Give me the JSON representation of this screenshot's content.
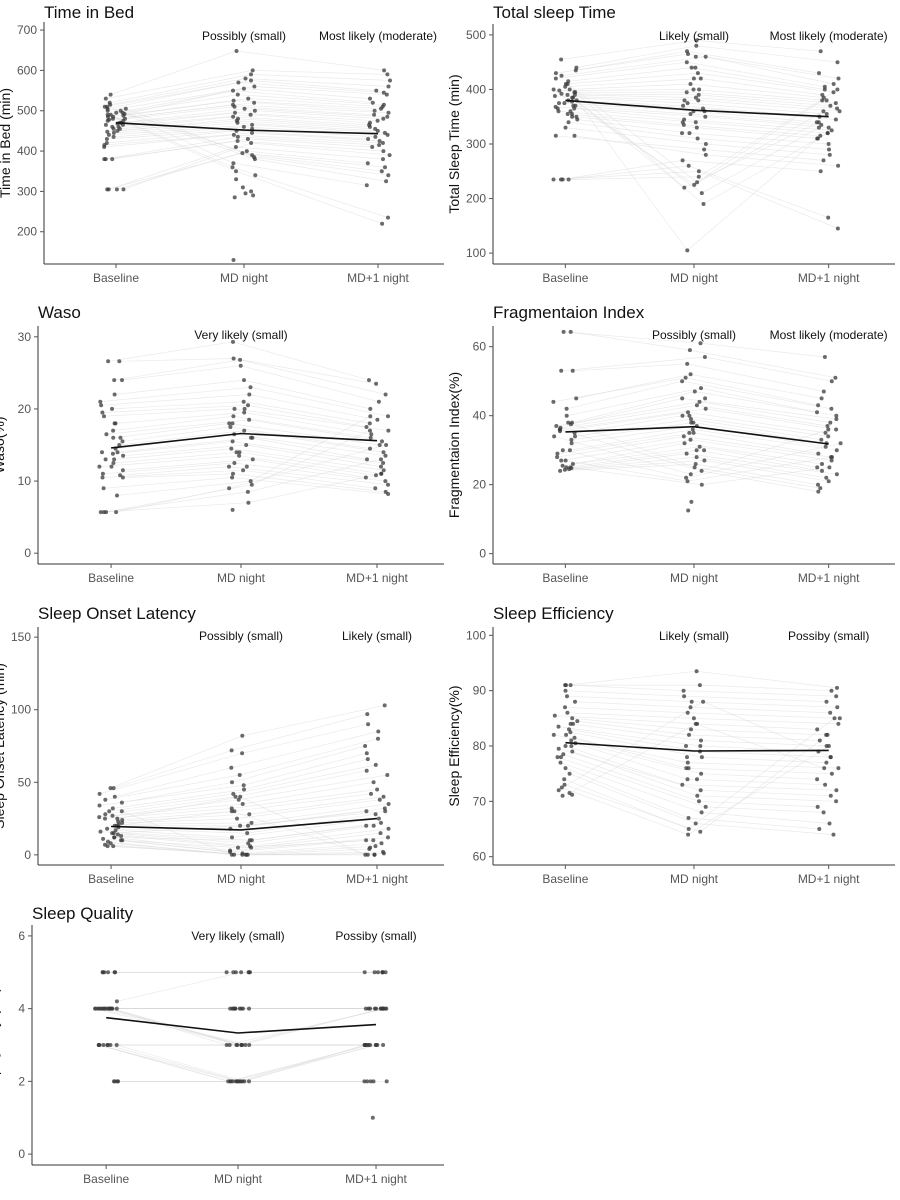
{
  "chart_data": [
    {
      "type": "scatter",
      "title": "Time in Bed",
      "ylabel": "Time in Bed (min)",
      "categories": [
        "Baseline",
        "MD night",
        "MD+1 night"
      ],
      "ylim": [
        120,
        720
      ],
      "yticks": [
        200,
        300,
        400,
        500,
        600,
        700
      ],
      "mean": [
        470,
        452,
        443
      ],
      "annotations": [
        "",
        "Possibly (small)",
        "Most likely (moderate)"
      ],
      "series": [
        {
          "name": "Baseline",
          "values": [
            540,
            530,
            520,
            515,
            510,
            505,
            500,
            495,
            492,
            490,
            488,
            485,
            480,
            478,
            475,
            470,
            468,
            465,
            460,
            455,
            450,
            448,
            445,
            440,
            435,
            430,
            420,
            415,
            410,
            380,
            380,
            380,
            305,
            305,
            305,
            305,
            500,
            505,
            510,
            495,
            490,
            485,
            480,
            475,
            470,
            465,
            460,
            455
          ]
        },
        {
          "name": "MD night",
          "values": [
            648,
            600,
            590,
            580,
            575,
            570,
            560,
            555,
            550,
            540,
            530,
            525,
            520,
            515,
            510,
            505,
            500,
            495,
            490,
            485,
            480,
            475,
            470,
            465,
            460,
            455,
            450,
            445,
            440,
            435,
            430,
            425,
            420,
            410,
            400,
            395,
            390,
            385,
            380,
            370,
            360,
            350,
            340,
            330,
            310,
            300,
            295,
            290,
            285,
            130
          ]
        },
        {
          "name": "MD+1 night",
          "values": [
            600,
            590,
            575,
            560,
            550,
            545,
            540,
            530,
            520,
            515,
            510,
            505,
            500,
            495,
            490,
            485,
            480,
            475,
            470,
            465,
            460,
            455,
            450,
            445,
            440,
            435,
            430,
            425,
            420,
            415,
            410,
            400,
            390,
            380,
            370,
            360,
            350,
            340,
            325,
            315,
            235,
            220
          ]
        }
      ]
    },
    {
      "type": "scatter",
      "title": "Total sleep Time",
      "ylabel": "Total Sleep Time (min)",
      "categories": [
        "Baseline",
        "MD night",
        "MD+1 night"
      ],
      "ylim": [
        80,
        520
      ],
      "yticks": [
        100,
        200,
        300,
        400,
        500
      ],
      "mean": [
        380,
        362,
        350
      ],
      "annotations": [
        "",
        "Likely (small)",
        "Most likely (moderate)"
      ],
      "series": [
        {
          "name": "Baseline",
          "values": [
            455,
            440,
            435,
            430,
            425,
            420,
            415,
            410,
            405,
            400,
            398,
            395,
            392,
            390,
            388,
            385,
            380,
            378,
            375,
            370,
            368,
            365,
            360,
            355,
            350,
            345,
            340,
            330,
            315,
            315,
            235,
            235,
            235,
            235,
            410,
            400,
            395,
            390,
            385,
            380,
            375,
            370,
            365,
            360,
            355,
            350
          ]
        },
        {
          "name": "MD night",
          "values": [
            490,
            480,
            470,
            465,
            460,
            450,
            440,
            430,
            420,
            410,
            400,
            395,
            390,
            385,
            380,
            375,
            370,
            365,
            360,
            355,
            350,
            345,
            340,
            335,
            330,
            320,
            310,
            300,
            290,
            280,
            270,
            260,
            250,
            240,
            230,
            225,
            220,
            210,
            190,
            105,
            460,
            440,
            420,
            400,
            380,
            360,
            340,
            320
          ]
        },
        {
          "name": "MD+1 night",
          "values": [
            470,
            450,
            430,
            420,
            410,
            405,
            400,
            395,
            390,
            385,
            380,
            375,
            370,
            365,
            360,
            355,
            350,
            345,
            340,
            335,
            330,
            325,
            320,
            315,
            310,
            300,
            290,
            280,
            270,
            260,
            250,
            165,
            145,
            400,
            380,
            360,
            340,
            330,
            320,
            310
          ]
        }
      ]
    },
    {
      "type": "scatter",
      "title": "Waso",
      "ylabel": "Waso(%)",
      "categories": [
        "Baseline",
        "MD night",
        "MD+1 night"
      ],
      "ylim": [
        -1.5,
        31.5
      ],
      "yticks": [
        0,
        10,
        20,
        30
      ],
      "mean": [
        14.6,
        16.6,
        15.6
      ],
      "annotations": [
        "",
        "Very likely (small)",
        ""
      ],
      "series": [
        {
          "name": "Baseline",
          "values": [
            26.6,
            26.6,
            24,
            24,
            22,
            21,
            20.5,
            20,
            19.5,
            19,
            18,
            17,
            16.5,
            16,
            15.5,
            15,
            14.5,
            14,
            13.8,
            13.5,
            13,
            12.5,
            12,
            11.5,
            11,
            10.8,
            10.5,
            10.5,
            9,
            8,
            5.7,
            5.7,
            5.7,
            5.7,
            18,
            16,
            14,
            13,
            12
          ]
        },
        {
          "name": "MD night",
          "values": [
            29.3,
            27,
            26.8,
            26,
            24,
            23,
            22,
            21,
            20.5,
            20,
            19.5,
            19,
            18.5,
            18,
            17.5,
            17,
            16.5,
            16,
            15.5,
            15,
            14.5,
            14,
            13.5,
            13,
            12.5,
            12,
            11.5,
            11,
            10.5,
            10,
            9.5,
            9,
            8.5,
            7,
            6,
            20,
            18,
            16,
            14,
            12
          ]
        },
        {
          "name": "MD+1 night",
          "values": [
            24,
            23.5,
            22,
            21,
            20,
            19,
            18.5,
            18,
            17.5,
            17,
            16.5,
            16,
            15.5,
            15,
            14.5,
            14,
            13.5,
            13,
            12.5,
            12,
            11.5,
            11,
            10.8,
            10.5,
            10,
            9.5,
            9,
            8.5,
            8.2,
            19,
            17,
            15,
            13,
            11
          ]
        }
      ]
    },
    {
      "type": "scatter",
      "title": "Fragmentaion Index",
      "ylabel": "Fragmentaion Index(%)",
      "categories": [
        "Baseline",
        "MD night",
        "MD+1 night"
      ],
      "ylim": [
        -3,
        66
      ],
      "yticks": [
        0,
        20,
        40,
        60
      ],
      "mean": [
        35.3,
        36.8,
        31.8
      ],
      "annotations": [
        "",
        "Possibly (small)",
        "Most likely (moderate)"
      ],
      "series": [
        {
          "name": "Baseline",
          "values": [
            64.3,
            64.3,
            53,
            53,
            45,
            44,
            42,
            40,
            38,
            37.5,
            37,
            36.5,
            36,
            35.5,
            35,
            34,
            33,
            32,
            30,
            29,
            28,
            27,
            26,
            25.5,
            25,
            24.8,
            24.5,
            24.3,
            24,
            38,
            36,
            34,
            30,
            27,
            25
          ]
        },
        {
          "name": "MD night",
          "values": [
            61,
            59,
            57,
            55,
            52,
            51,
            50,
            48,
            47,
            45,
            44,
            43,
            42,
            41,
            40,
            39,
            38,
            37,
            36,
            35,
            34,
            33,
            32,
            31,
            30,
            29,
            28,
            27,
            26,
            25,
            24,
            23,
            22,
            21,
            20,
            15,
            12.5,
            45,
            40,
            38,
            35,
            30
          ]
        },
        {
          "name": "MD+1 night",
          "values": [
            57,
            51,
            50,
            47,
            45,
            43,
            42,
            41,
            40,
            39,
            38,
            37,
            36,
            35,
            34,
            33,
            32,
            31,
            30,
            29,
            28,
            27,
            26,
            25,
            24,
            23,
            22,
            21,
            20,
            19,
            18,
            36,
            32,
            28,
            25
          ]
        }
      ]
    },
    {
      "type": "scatter",
      "title": "Sleep Onset Latency",
      "ylabel": "Sleep Onset Latency (min)",
      "categories": [
        "Baseline",
        "MD night",
        "MD+1 night"
      ],
      "ylim": [
        -7,
        157
      ],
      "yticks": [
        0,
        50,
        100,
        150
      ],
      "mean": [
        19.5,
        17.2,
        25
      ],
      "annotations": [
        "",
        "Possibly (small)",
        "Likely (small)"
      ],
      "series": [
        {
          "name": "Baseline",
          "values": [
            46,
            46,
            42,
            40,
            38,
            36,
            34,
            32,
            30,
            28,
            27,
            26,
            25,
            24,
            23,
            22,
            21,
            20,
            19,
            18,
            17,
            16,
            15,
            14,
            13,
            12,
            11,
            10,
            9,
            8,
            7,
            6,
            6,
            30,
            25,
            20,
            15,
            12,
            10
          ]
        },
        {
          "name": "MD night",
          "values": [
            82,
            72,
            70,
            60,
            55,
            50,
            48,
            45,
            42,
            40,
            38,
            35,
            32,
            30,
            28,
            25,
            22,
            20,
            18,
            15,
            12,
            10,
            8,
            6,
            5,
            3,
            2,
            1,
            0,
            0,
            0,
            0,
            0,
            0,
            40,
            30,
            20,
            10,
            5
          ]
        },
        {
          "name": "MD+1 night",
          "values": [
            103,
            97,
            90,
            85,
            80,
            75,
            70,
            66,
            62,
            58,
            55,
            50,
            45,
            42,
            40,
            38,
            35,
            32,
            30,
            28,
            25,
            22,
            20,
            18,
            15,
            12,
            10,
            8,
            6,
            4,
            2,
            1,
            0,
            0,
            0,
            0,
            30,
            20,
            10,
            5
          ]
        }
      ]
    },
    {
      "type": "scatter",
      "title": "Sleep Efficiency",
      "ylabel": "Sleep Efficiency(%)",
      "categories": [
        "Baseline",
        "MD night",
        "MD+1 night"
      ],
      "ylim": [
        58.5,
        101.5
      ],
      "yticks": [
        60,
        70,
        80,
        90,
        100
      ],
      "mean": [
        80.6,
        79.1,
        79.2
      ],
      "annotations": [
        "",
        "Likely (small)",
        "Possiby (small)"
      ],
      "series": [
        {
          "name": "Baseline",
          "values": [
            91,
            91,
            91,
            90,
            89,
            88,
            87,
            86,
            85.5,
            85,
            84.5,
            84,
            83.5,
            83,
            82.5,
            82,
            81.5,
            81,
            80.5,
            80,
            79.5,
            79,
            78.5,
            78,
            77,
            76,
            75,
            74,
            73,
            72.5,
            72,
            71.5,
            71.2,
            71,
            84,
            82,
            80,
            78
          ]
        },
        {
          "name": "MD night",
          "values": [
            93.5,
            91,
            90,
            89,
            88,
            87,
            86,
            85,
            84,
            83,
            82,
            81,
            80,
            79,
            78,
            77,
            76,
            75,
            74,
            73,
            72,
            71,
            70,
            69,
            68,
            67,
            66,
            65,
            64.5,
            64,
            88,
            84,
            80,
            78,
            76,
            74
          ]
        },
        {
          "name": "MD+1 night",
          "values": [
            90.5,
            90,
            89,
            88,
            87,
            86,
            85,
            84,
            83,
            82,
            81,
            80,
            79,
            78,
            77,
            76,
            75,
            74,
            73,
            72,
            71,
            70,
            69,
            68,
            66,
            65,
            64,
            85,
            82,
            80,
            78,
            76
          ]
        }
      ]
    },
    {
      "type": "scatter",
      "title": "Sleep Quality",
      "ylabel": "Sleep Quality (AU)",
      "categories": [
        "Baseline",
        "MD night",
        "MD+1 night"
      ],
      "ylim": [
        -0.3,
        6.3
      ],
      "yticks": [
        0,
        2,
        4,
        6
      ],
      "mean": [
        3.75,
        3.33,
        3.56
      ],
      "annotations": [
        "",
        "Very likely (small)",
        "Possiby (small)"
      ],
      "series": [
        {
          "name": "Baseline",
          "values": [
            5,
            5,
            5,
            5,
            5,
            5,
            4.2,
            4,
            4,
            4,
            4,
            4,
            4,
            4,
            4,
            4,
            4,
            4,
            4,
            4,
            4,
            4,
            4,
            3,
            3,
            3,
            3,
            3,
            3,
            3,
            3,
            2,
            2,
            2,
            2
          ]
        },
        {
          "name": "MD night",
          "values": [
            5,
            5,
            5,
            5,
            5,
            5,
            5,
            4,
            4,
            4,
            4,
            4,
            4,
            4,
            4,
            4,
            4,
            3,
            3,
            3,
            3,
            3,
            3,
            3,
            3,
            3,
            2,
            2,
            2,
            2,
            2,
            2,
            2,
            2,
            2,
            2,
            2,
            2
          ]
        },
        {
          "name": "MD+1 night",
          "values": [
            5,
            5,
            5,
            5,
            5,
            5,
            5,
            4,
            4,
            4,
            4,
            4,
            4,
            4,
            4,
            4,
            4,
            4,
            4,
            4,
            3,
            3,
            3,
            3,
            3,
            3,
            3,
            3,
            3,
            3,
            3,
            2,
            2,
            2,
            2,
            2,
            1
          ]
        }
      ]
    }
  ]
}
